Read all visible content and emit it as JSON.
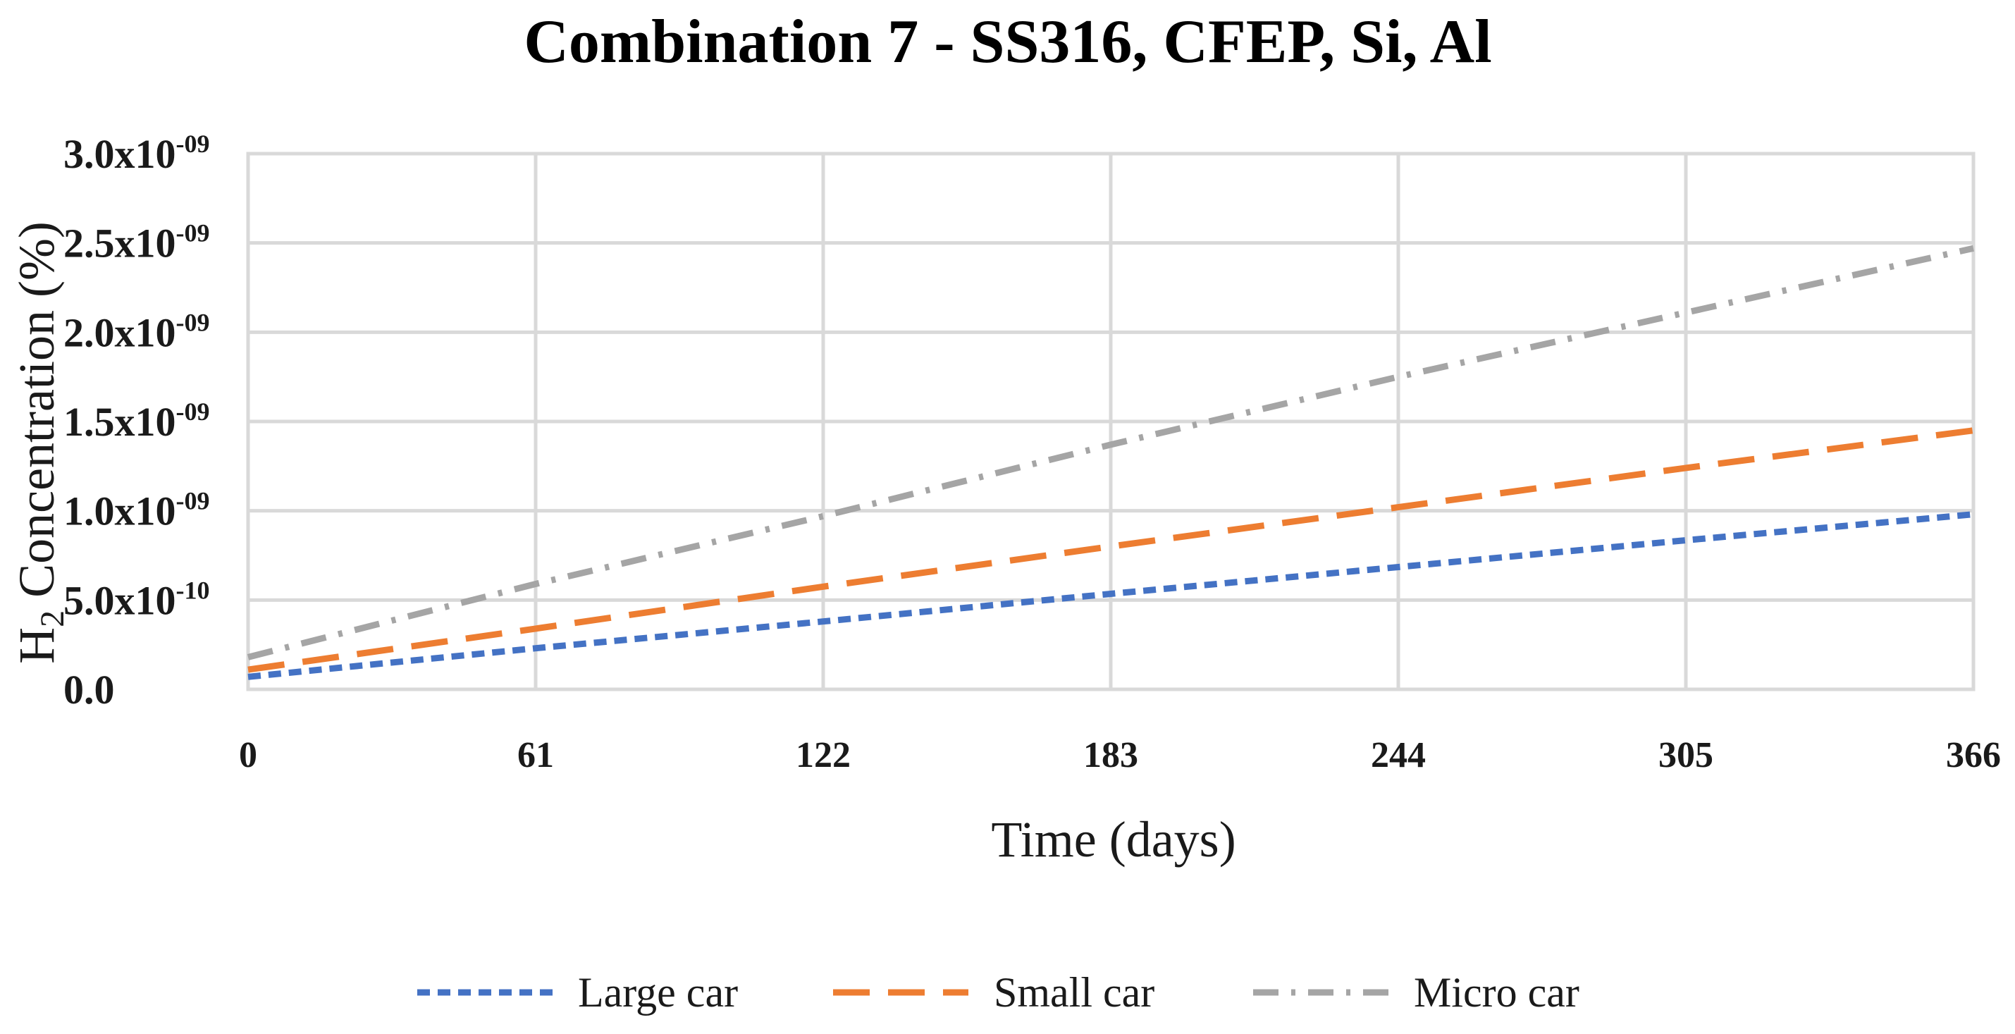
{
  "chart_data": {
    "type": "line",
    "title": "Combination 7 - SS316, CFEP, Si, Al",
    "xlabel": "Time (days)",
    "ylabel": {
      "prefix": "H",
      "subscript": "2",
      "suffix": " Concentration (%)"
    },
    "x_ticks": [
      0,
      61,
      122,
      183,
      244,
      305,
      366
    ],
    "xlim": [
      0,
      366
    ],
    "ylim": [
      0,
      3e-09
    ],
    "y_ticks": [
      {
        "value": 0,
        "mantissa": "0.0",
        "exponent": ""
      },
      {
        "value": 5e-10,
        "mantissa": "5.0x10",
        "exponent": "-10"
      },
      {
        "value": 1e-09,
        "mantissa": "1.0x10",
        "exponent": "-09"
      },
      {
        "value": 1.5e-09,
        "mantissa": "1.5x10",
        "exponent": "-09"
      },
      {
        "value": 2e-09,
        "mantissa": "2.0x10",
        "exponent": "-09"
      },
      {
        "value": 2.5e-09,
        "mantissa": "2.5x10",
        "exponent": "-09"
      },
      {
        "value": 3e-09,
        "mantissa": "3.0x10",
        "exponent": "-09"
      }
    ],
    "grid": true,
    "legend_position": "bottom",
    "series": [
      {
        "name": "Large car",
        "color": "#4472c4",
        "style": "short-dash",
        "x": [
          0,
          61,
          122,
          183,
          244,
          305,
          366
        ],
        "y": [
          7e-11,
          2.3e-10,
          3.8e-10,
          5.35e-10,
          6.85e-10,
          8.35e-10,
          9.8e-10
        ]
      },
      {
        "name": "Small car",
        "color": "#ed7d31",
        "style": "long-dash",
        "x": [
          0,
          61,
          122,
          183,
          244,
          305,
          366
        ],
        "y": [
          1.1e-10,
          3.4e-10,
          5.75e-10,
          8e-10,
          1.02e-09,
          1.24e-09,
          1.45e-09
        ]
      },
      {
        "name": "Micro car",
        "color": "#a5a5a5",
        "style": "dash-dot",
        "x": [
          0,
          61,
          122,
          183,
          244,
          305,
          366
        ],
        "y": [
          1.8e-10,
          5.9e-10,
          9.7e-10,
          1.37e-09,
          1.75e-09,
          2.11e-09,
          2.47e-09
        ]
      }
    ]
  }
}
